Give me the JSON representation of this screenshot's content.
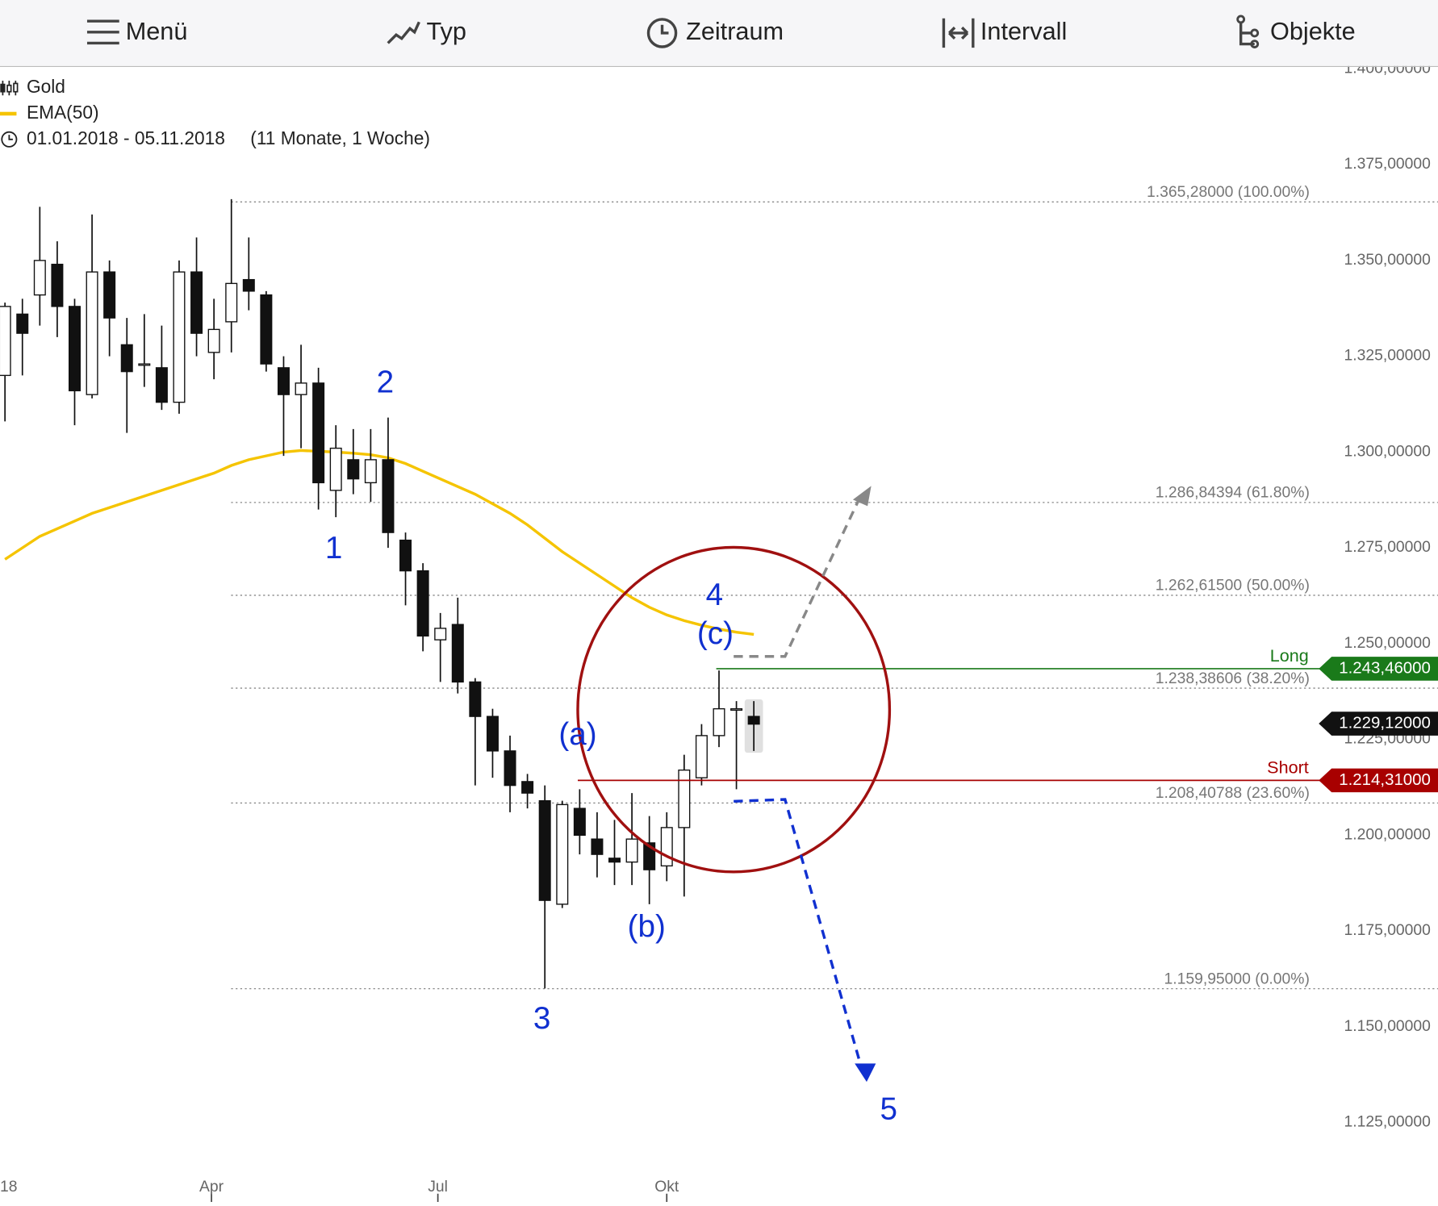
{
  "toolbar": {
    "items": [
      "Menü",
      "Typ",
      "Zeitraum",
      "Intervall",
      "Objekte"
    ]
  },
  "chart_data": {
    "type": "candlestick",
    "name": "Gold",
    "range_label": "01.01.2018 - 05.11.2018",
    "range_duration": "(11 Monate, 1 Woche)",
    "x": [
      "2018-01-08",
      "2018-01-15",
      "2018-01-22",
      "2018-01-29",
      "2018-02-05",
      "2018-02-12",
      "2018-02-19",
      "2018-02-26",
      "2018-03-05",
      "2018-03-12",
      "2018-03-19",
      "2018-03-26",
      "2018-04-02",
      "2018-04-09",
      "2018-04-16",
      "2018-04-23",
      "2018-04-30",
      "2018-05-07",
      "2018-05-14",
      "2018-05-21",
      "2018-05-28",
      "2018-06-04",
      "2018-06-11",
      "2018-06-18",
      "2018-06-25",
      "2018-07-02",
      "2018-07-09",
      "2018-07-16",
      "2018-07-23",
      "2018-07-30",
      "2018-08-06",
      "2018-08-13",
      "2018-08-20",
      "2018-08-27",
      "2018-09-03",
      "2018-09-10",
      "2018-09-17",
      "2018-09-24",
      "2018-10-01",
      "2018-10-08",
      "2018-10-15",
      "2018-10-22",
      "2018-10-29",
      "2018-11-05"
    ],
    "open": [
      1320,
      1336,
      1341,
      1349,
      1338,
      1315,
      1347,
      1328,
      1323,
      1322,
      1313,
      1347,
      1326,
      1334,
      1345,
      1341,
      1322,
      1315,
      1318,
      1290,
      1298,
      1292,
      1298,
      1277,
      1269,
      1251,
      1255,
      1240,
      1231,
      1222,
      1214,
      1209,
      1182,
      1207,
      1199,
      1194,
      1193,
      1198,
      1192,
      1202,
      1215,
      1226,
      1233,
      1231
    ],
    "high": [
      1339,
      1340,
      1364,
      1355,
      1340,
      1362,
      1350,
      1335,
      1336,
      1333,
      1350,
      1356,
      1340,
      1366,
      1356,
      1342,
      1325,
      1328,
      1322,
      1307,
      1306,
      1306,
      1309,
      1279,
      1271,
      1258,
      1262,
      1241,
      1233,
      1226,
      1216,
      1213,
      1209,
      1212,
      1206,
      1204,
      1211,
      1205,
      1206,
      1221,
      1229,
      1243,
      1235,
      1235
    ],
    "low": [
      1308,
      1320,
      1333,
      1330,
      1307,
      1314,
      1325,
      1305,
      1317,
      1311,
      1310,
      1325,
      1319,
      1326,
      1337,
      1321,
      1299,
      1301,
      1285,
      1283,
      1289,
      1287,
      1275,
      1260,
      1248,
      1240,
      1237,
      1213,
      1215,
      1206,
      1207,
      1160,
      1181,
      1195,
      1189,
      1187,
      1187,
      1182,
      1188,
      1184,
      1213,
      1223,
      1212,
      1222
    ],
    "close": [
      1338,
      1331,
      1350,
      1338,
      1316,
      1347,
      1335,
      1321,
      1323,
      1313,
      1347,
      1331,
      1332,
      1344,
      1342,
      1323,
      1315,
      1318,
      1292,
      1301,
      1293,
      1298,
      1279,
      1269,
      1252,
      1254,
      1240,
      1231,
      1222,
      1213,
      1211,
      1183,
      1208,
      1200,
      1195,
      1193,
      1199,
      1191,
      1202,
      1217,
      1226,
      1233,
      1233,
      1229
    ],
    "ema": {
      "name": "EMA(50)",
      "color": "#f5c400",
      "values": [
        1272,
        1275,
        1278,
        1280,
        1282,
        1284,
        1285.5,
        1287,
        1288.5,
        1290,
        1291.5,
        1293,
        1294.5,
        1296.5,
        1298,
        1299,
        1300,
        1300.4,
        1300.2,
        1300,
        1299.7,
        1299.3,
        1298.5,
        1297,
        1295,
        1293,
        1291,
        1289,
        1286.5,
        1284,
        1281,
        1277.5,
        1274,
        1271,
        1268,
        1265,
        1262,
        1259.5,
        1257.5,
        1256,
        1254.8,
        1253.8,
        1253,
        1252.4
      ]
    },
    "xlim": [
      "2018-01-06",
      "2019-08-07"
    ],
    "ylim": [
      1104.3,
      1400.5
    ],
    "yticks": [
      {
        "value": 1400,
        "label": "1.400,00000"
      },
      {
        "value": 1375,
        "label": "1.375,00000"
      },
      {
        "value": 1350,
        "label": "1.350,00000"
      },
      {
        "value": 1325,
        "label": "1.325,00000"
      },
      {
        "value": 1300,
        "label": "1.300,00000"
      },
      {
        "value": 1275,
        "label": "1.275,00000"
      },
      {
        "value": 1250,
        "label": "1.250,00000"
      },
      {
        "value": 1225,
        "label": "1.225,00000"
      },
      {
        "value": 1200,
        "label": "1.200,00000"
      },
      {
        "value": 1175,
        "label": "1.175,00000"
      },
      {
        "value": 1150,
        "label": "1.150,00000"
      },
      {
        "value": 1125,
        "label": "1.125,00000"
      }
    ],
    "xticks": [
      {
        "value": "2018-01-01",
        "label": "18"
      },
      {
        "value": "2018-04-01",
        "label": "Apr"
      },
      {
        "value": "2018-07-01",
        "label": "Jul"
      },
      {
        "value": "2018-10-01",
        "label": "Okt"
      }
    ],
    "fib_levels": [
      {
        "value": 1365.28,
        "label": "1.365,28000 (100.00%)"
      },
      {
        "value": 1286.84394,
        "label": "1.286,84394 (61.80%)"
      },
      {
        "value": 1262.615,
        "label": "1.262,61500 (50.00%)"
      },
      {
        "value": 1238.38606,
        "label": "1.238,38606 (38.20%)"
      },
      {
        "value": 1208.40788,
        "label": "1.208,40788 (23.60%)"
      },
      {
        "value": 1159.95,
        "label": "1.159,95000 (0.00%)"
      }
    ],
    "long": {
      "name": "Long",
      "value": 1243.46,
      "label": "1.243,46000",
      "color": "#1a7a1a"
    },
    "short": {
      "name": "Short",
      "value": 1214.31,
      "label": "1.214,31000",
      "color": "#a80000"
    },
    "current": {
      "value": 1229.12,
      "label": "1.229,12000"
    },
    "annotations": [
      "1",
      "2",
      "3",
      "4",
      "5",
      "(a)",
      "(b)",
      "(c)"
    ]
  }
}
